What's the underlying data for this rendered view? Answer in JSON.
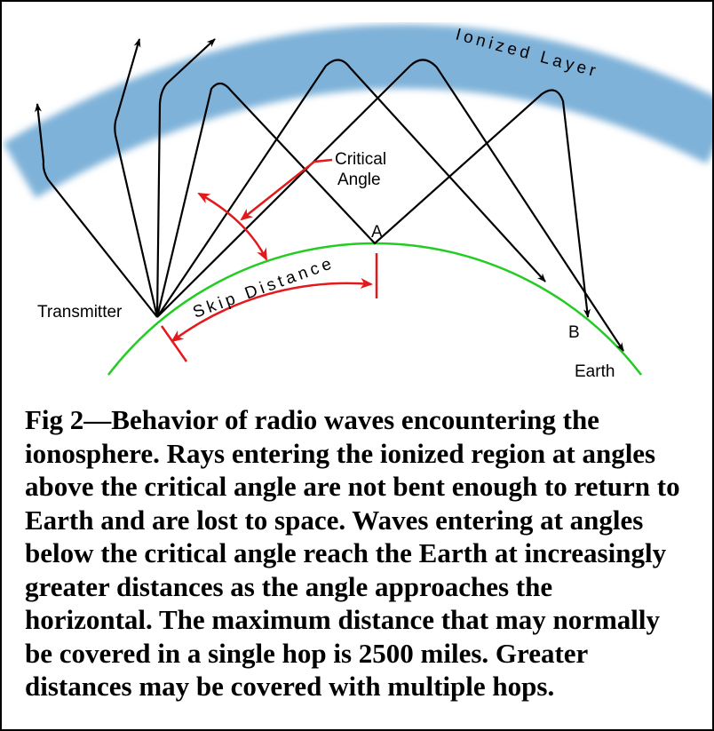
{
  "diagram": {
    "layer_label": "Ionized Layer",
    "critical_angle": [
      "Critical",
      "Angle"
    ],
    "point_a": "A",
    "point_b": "B",
    "transmitter": "Transmitter",
    "skip_distance": "Skip Distance",
    "earth": "Earth"
  },
  "caption": {
    "lines": [
      "Fig 2—Behavior of radio waves encountering the",
      "ionosphere. Rays entering the ionized region at angles",
      "above the critical angle are not bent enough to return to",
      "Earth and are lost to space. Waves entering at angles",
      "below the critical angle reach the Earth at increasingly",
      "greater distances as the angle approaches the",
      "horizontal. The maximum distance that may normally",
      "be covered in a single hop is 2500 miles. Greater",
      "distances may be covered with multiple hops."
    ]
  }
}
